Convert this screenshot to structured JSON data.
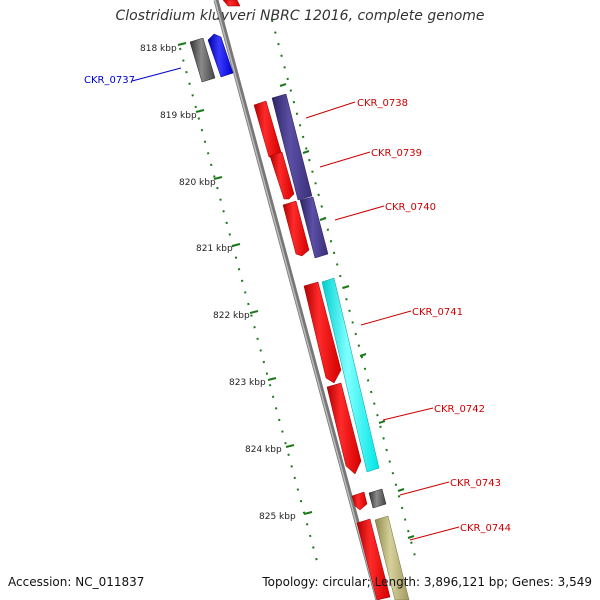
{
  "title": "Clostridium kluyveri NBRC 12016, complete genome",
  "accession_label": "Accession: NC_011837",
  "topology_label": "Topology: circular; Length: 3,896,121 bp; Genes: 3,549",
  "kbp_ticks": [
    "818 kbp",
    "819 kbp",
    "820 kbp",
    "821 kbp",
    "822 kbp",
    "823 kbp",
    "824 kbp",
    "825 kbp"
  ],
  "genes": [
    {
      "name": "CKR_0737",
      "color": "#0000cc"
    },
    {
      "name": "CKR_0738",
      "color": "#ff0000"
    },
    {
      "name": "CKR_0739",
      "color": "#ff0000"
    },
    {
      "name": "CKR_0740",
      "color": "#ff0000"
    },
    {
      "name": "CKR_0741",
      "color": "#ff0000"
    },
    {
      "name": "CKR_0742",
      "color": "#ff0000"
    },
    {
      "name": "CKR_0743",
      "color": "#ff0000"
    },
    {
      "name": "CKR_0744",
      "color": "#ff0000"
    }
  ],
  "colors": {
    "backbone": "#888888",
    "cds": "#ff0000",
    "dark_grey": "#555555",
    "purple": "#4b3f8c",
    "cyan": "#00ffff",
    "khaki": "#b5ae72",
    "blue": "#0000ff",
    "tick_green": "#1a7a1a"
  }
}
